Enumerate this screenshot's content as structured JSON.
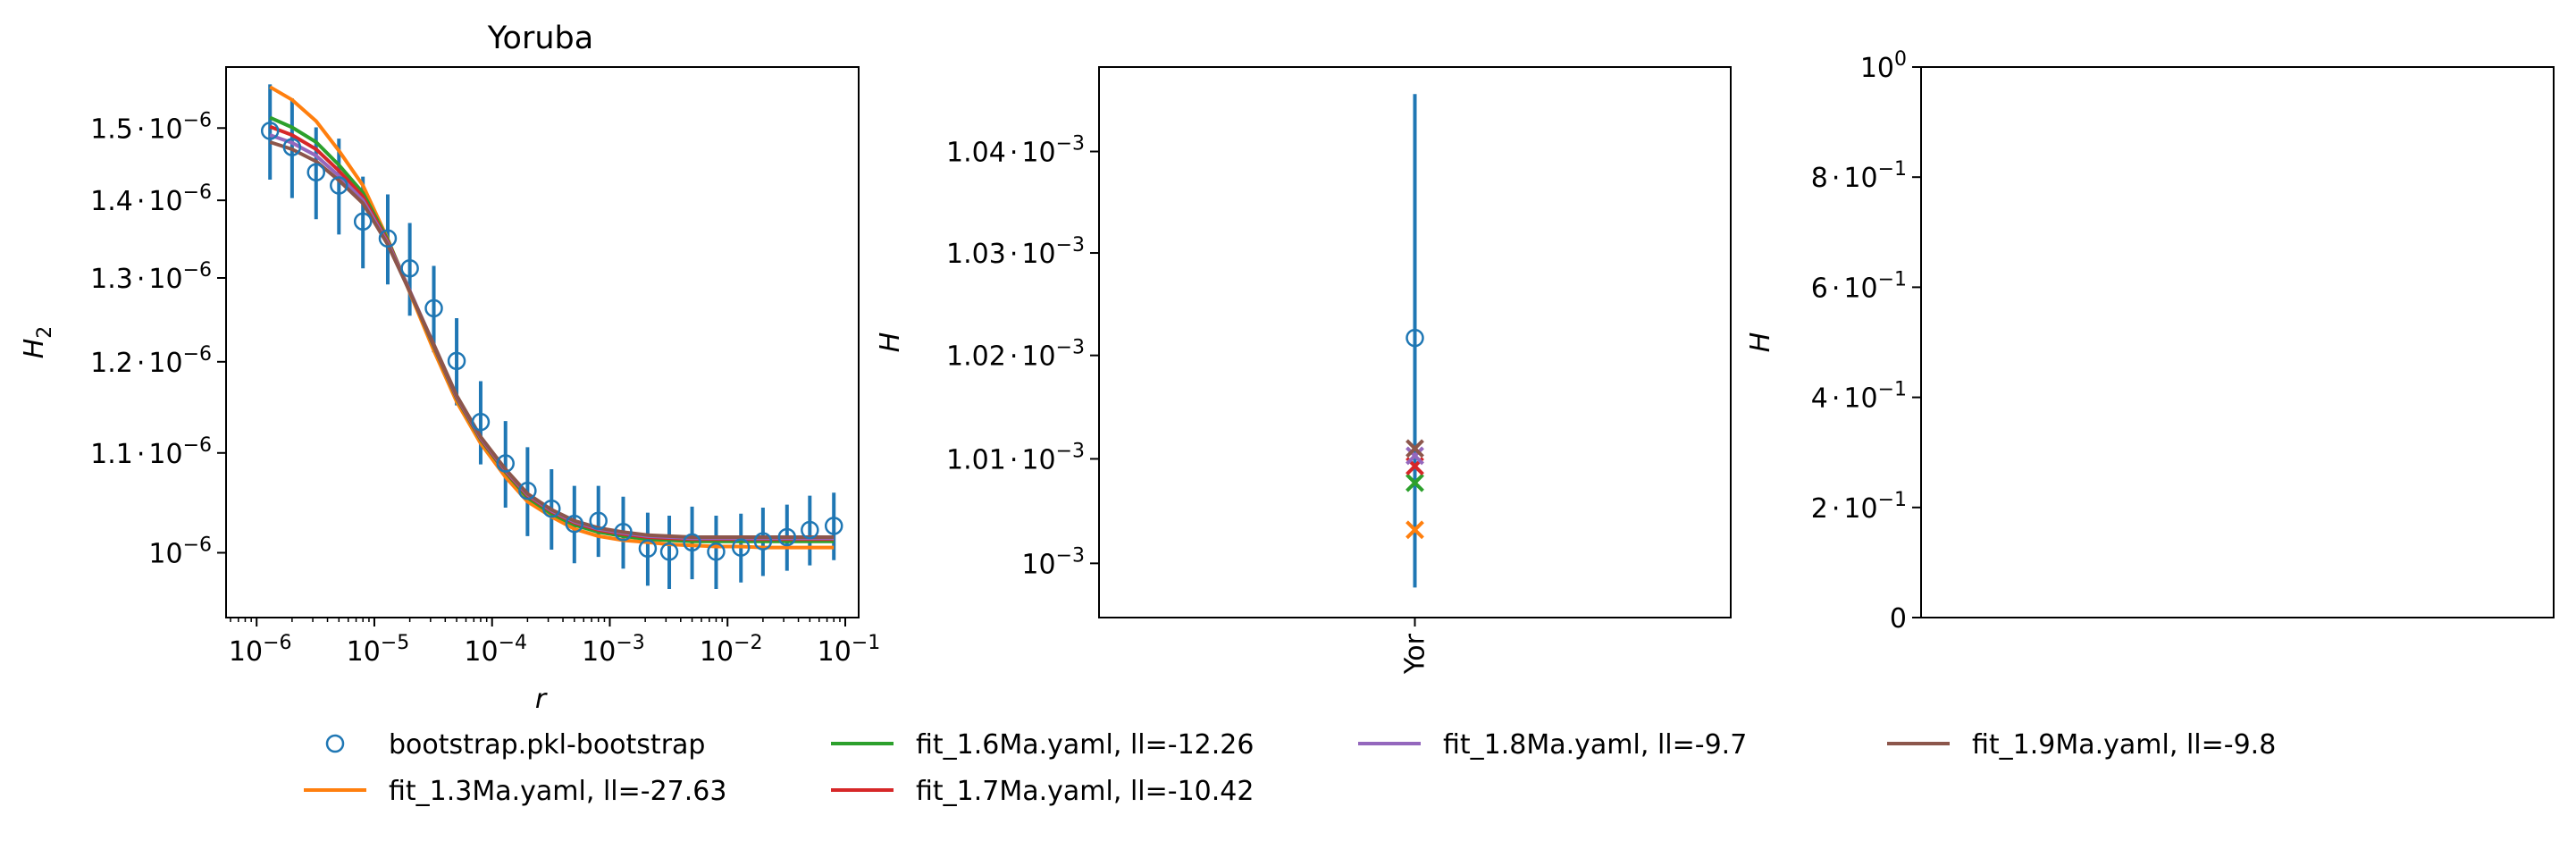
{
  "colors": {
    "bootstrap": "#1f77b4",
    "fit13": "#ff7f0e",
    "fit16": "#2ca02c",
    "fit17": "#d62728",
    "fit18": "#9467bd",
    "fit19": "#8c564b"
  },
  "chart_data": [
    {
      "type": "line",
      "title": "Yoruba",
      "xlabel": "r",
      "ylabel": "H",
      "ylabel_sub": "2",
      "x_scale": "log",
      "y_scale": "log",
      "xlim": [
        5.5e-07,
        0.13
      ],
      "ylim": [
        9.4e-07,
        1.59e-06
      ],
      "x_ticks": [
        {
          "value": 1e-06,
          "base": "10",
          "exp": "−6"
        },
        {
          "value": 1e-05,
          "base": "10",
          "exp": "−5"
        },
        {
          "value": 0.0001,
          "base": "10",
          "exp": "−4"
        },
        {
          "value": 0.001,
          "base": "10",
          "exp": "−3"
        },
        {
          "value": 0.01,
          "base": "10",
          "exp": "−2"
        },
        {
          "value": 0.1,
          "base": "10",
          "exp": "−1"
        }
      ],
      "y_ticks": [
        {
          "value": 1.5e-06,
          "mant": "1.5",
          "dot": "·",
          "base": "10",
          "exp": "−6"
        },
        {
          "value": 1.4e-06,
          "mant": "1.4",
          "dot": "·",
          "base": "10",
          "exp": "−6"
        },
        {
          "value": 1.3e-06,
          "mant": "1.3",
          "dot": "·",
          "base": "10",
          "exp": "−6"
        },
        {
          "value": 1.2e-06,
          "mant": "1.2",
          "dot": "·",
          "base": "10",
          "exp": "−6"
        },
        {
          "value": 1.1e-06,
          "mant": "1.1",
          "dot": "·",
          "base": "10",
          "exp": "−6"
        },
        {
          "value": 1e-06,
          "mant": "",
          "dot": "",
          "base": "10",
          "exp": "−6"
        }
      ],
      "x": [
        1.3e-06,
        2e-06,
        3.2e-06,
        5e-06,
        8e-06,
        1.3e-05,
        2e-05,
        3.2e-05,
        5e-05,
        8e-05,
        0.00013,
        0.0002,
        0.00032,
        0.0005,
        0.0008,
        0.0013,
        0.0021,
        0.0032,
        0.005,
        0.008,
        0.013,
        0.02,
        0.032,
        0.05,
        0.08
      ],
      "series": [
        {
          "name": "bootstrap.pkl-bootstrap",
          "kind": "errorbar",
          "color_key": "bootstrap",
          "values": [
            1.496e-06,
            1.473e-06,
            1.438e-06,
            1.42e-06,
            1.372e-06,
            1.35e-06,
            1.312e-06,
            1.263e-06,
            1.201e-06,
            1.133e-06,
            1.089e-06,
            1.061e-06,
            1.043e-06,
            1.028e-06,
            1.031e-06,
            1.02e-06,
            1.004e-06,
            1.001e-06,
            1.01e-06,
            1.001e-06,
            1.005e-06,
            1.011e-06,
            1.015e-06,
            1.022e-06,
            1.026e-06
          ],
          "errors": [
            6.8e-08,
            7e-08,
            6.3e-08,
            6.5e-08,
            6e-08,
            5.8e-08,
            5.8e-08,
            5.2e-08,
            5e-08,
            4.5e-08,
            4.5e-08,
            4.5e-08,
            4e-08,
            3.8e-08,
            3.5e-08,
            3.5e-08,
            3.5e-08,
            3.5e-08,
            3.5e-08,
            3.5e-08,
            3.3e-08,
            3.3e-08,
            3.2e-08,
            3.4e-08,
            3.3e-08
          ]
        },
        {
          "name": "fit_1.3Ma.yaml, ll=-27.63",
          "kind": "line",
          "color_key": "fit13",
          "values": [
            1.56e-06,
            1.541e-06,
            1.51e-06,
            1.468e-06,
            1.42e-06,
            1.349e-06,
            1.282e-06,
            1.213e-06,
            1.155e-06,
            1.11e-06,
            1.075e-06,
            1.05e-06,
            1.035e-06,
            1.023e-06,
            1.016e-06,
            1.012e-06,
            1.01e-06,
            1.008e-06,
            1.007e-06,
            1.006e-06,
            1.006e-06,
            1.005e-06,
            1.005e-06,
            1.005e-06,
            1.005e-06
          ]
        },
        {
          "name": "fit_1.6Ma.yaml, ll=-12.26",
          "kind": "line",
          "color_key": "fit16",
          "values": [
            1.515e-06,
            1.501e-06,
            1.48e-06,
            1.448e-06,
            1.41e-06,
            1.348e-06,
            1.284e-06,
            1.218e-06,
            1.159e-06,
            1.114e-06,
            1.08e-06,
            1.054e-06,
            1.038e-06,
            1.027e-06,
            1.02e-06,
            1.016e-06,
            1.013e-06,
            1.012e-06,
            1.011e-06,
            1.011e-06,
            1.011e-06,
            1.011e-06,
            1.011e-06,
            1.011e-06,
            1.011e-06
          ]
        },
        {
          "name": "fit_1.7Ma.yaml, ll=-10.42",
          "kind": "line",
          "color_key": "fit17",
          "values": [
            1.502e-06,
            1.49e-06,
            1.47e-06,
            1.44e-06,
            1.405e-06,
            1.346e-06,
            1.284e-06,
            1.219e-06,
            1.16e-06,
            1.115e-06,
            1.081e-06,
            1.056e-06,
            1.04e-06,
            1.029e-06,
            1.022e-06,
            1.018e-06,
            1.015e-06,
            1.014e-06,
            1.013e-06,
            1.013e-06,
            1.013e-06,
            1.013e-06,
            1.013e-06,
            1.013e-06,
            1.013e-06
          ]
        },
        {
          "name": "fit_1.8Ma.yaml, ll=-9.7",
          "kind": "line",
          "color_key": "fit18",
          "values": [
            1.49e-06,
            1.479e-06,
            1.461e-06,
            1.433e-06,
            1.4e-06,
            1.344e-06,
            1.284e-06,
            1.22e-06,
            1.161e-06,
            1.116e-06,
            1.082e-06,
            1.057e-06,
            1.041e-06,
            1.03e-06,
            1.023e-06,
            1.019e-06,
            1.016e-06,
            1.015e-06,
            1.014e-06,
            1.014e-06,
            1.014e-06,
            1.014e-06,
            1.014e-06,
            1.014e-06,
            1.014e-06
          ]
        },
        {
          "name": "fit_1.9Ma.yaml, ll=-9.8",
          "kind": "line",
          "color_key": "fit19",
          "values": [
            1.48e-06,
            1.47e-06,
            1.453e-06,
            1.427e-06,
            1.396e-06,
            1.342e-06,
            1.283e-06,
            1.22e-06,
            1.162e-06,
            1.117e-06,
            1.083e-06,
            1.058e-06,
            1.042e-06,
            1.031e-06,
            1.024e-06,
            1.02e-06,
            1.017e-06,
            1.016e-06,
            1.015e-06,
            1.015e-06,
            1.015e-06,
            1.015e-06,
            1.015e-06,
            1.015e-06,
            1.015e-06
          ]
        }
      ]
    },
    {
      "type": "scatter",
      "title": "",
      "xlabel": "",
      "ylabel": "H",
      "y_scale": "log",
      "ylim": [
        0.00099485,
        0.0010484
      ],
      "categories": [
        "Yor"
      ],
      "y_ticks": [
        {
          "value": 0.00104,
          "mant": "1.04",
          "dot": "·",
          "base": "10",
          "exp": "−3"
        },
        {
          "value": 0.00103,
          "mant": "1.03",
          "dot": "·",
          "base": "10",
          "exp": "−3"
        },
        {
          "value": 0.00102,
          "mant": "1.02",
          "dot": "·",
          "base": "10",
          "exp": "−3"
        },
        {
          "value": 0.00101,
          "mant": "1.01",
          "dot": "·",
          "base": "10",
          "exp": "−3"
        },
        {
          "value": 0.001,
          "mant": "",
          "dot": "",
          "base": "10",
          "exp": "−3"
        }
      ],
      "observed": {
        "name": "bootstrap.pkl-bootstrap",
        "value": 0.0010217,
        "error": 2.4e-05,
        "color_key": "bootstrap"
      },
      "fits": [
        {
          "name": "fit_1.3Ma.yaml, ll=-27.63",
          "value": 0.0010032,
          "color_key": "fit13"
        },
        {
          "name": "fit_1.6Ma.yaml, ll=-12.26",
          "value": 0.0010077,
          "color_key": "fit16"
        },
        {
          "name": "fit_1.7Ma.yaml, ll=-10.42",
          "value": 0.0010093,
          "color_key": "fit17"
        },
        {
          "name": "fit_1.8Ma.yaml, ll=-9.7",
          "value": 0.0010103,
          "color_key": "fit18"
        },
        {
          "name": "fit_1.9Ma.yaml, ll=-9.8",
          "value": 0.001011,
          "color_key": "fit19"
        }
      ]
    },
    {
      "type": "scatter",
      "title": "",
      "xlabel": "",
      "ylabel": "H",
      "y_scale": "linear",
      "ylim": [
        0,
        1
      ],
      "categories": [],
      "y_ticks": [
        {
          "value": 1.0,
          "mant": "",
          "dot": "",
          "base": "10",
          "exp": "0"
        },
        {
          "value": 0.8,
          "mant": "8",
          "dot": "·",
          "base": "10",
          "exp": "−1"
        },
        {
          "value": 0.6,
          "mant": "6",
          "dot": "·",
          "base": "10",
          "exp": "−1"
        },
        {
          "value": 0.4,
          "mant": "4",
          "dot": "·",
          "base": "10",
          "exp": "−1"
        },
        {
          "value": 0.2,
          "mant": "2",
          "dot": "·",
          "base": "10",
          "exp": "−1"
        },
        {
          "value": 0.0,
          "mant": "0",
          "dot": "",
          "base": "",
          "exp": ""
        }
      ]
    }
  ],
  "legend": {
    "placement": "bottom",
    "columns": 4
  }
}
